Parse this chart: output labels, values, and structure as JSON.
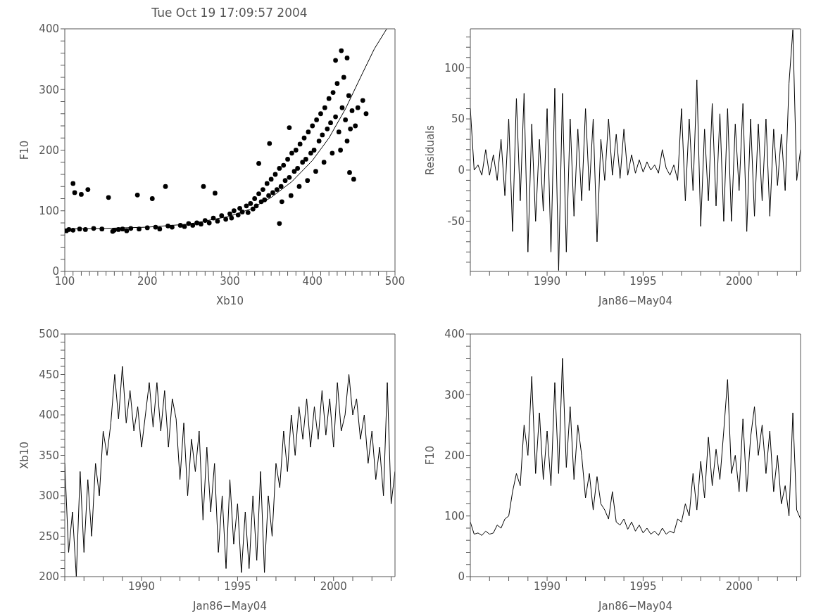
{
  "chart_data": [
    {
      "type": "scatter",
      "title": "Tue Oct 19 17:09:57 2004",
      "xlabel": "Xb10",
      "ylabel": "F10",
      "xlim": [
        100,
        500
      ],
      "ylim": [
        0,
        400
      ],
      "xticks": [
        100,
        {
          "value": 110,
          "label": null
        },
        {
          "value": 120,
          "label": null
        },
        {
          "value": 130,
          "label": null
        },
        {
          "value": 140,
          "label": null
        },
        {
          "value": 150,
          "label": null
        },
        {
          "value": 160,
          "label": null
        },
        {
          "value": 170,
          "label": null
        },
        {
          "value": 180,
          "label": null
        },
        {
          "value": 190,
          "label": null
        },
        200,
        {
          "value": 210,
          "label": null
        },
        {
          "value": 220,
          "label": null
        },
        {
          "value": 230,
          "label": null
        },
        {
          "value": 240,
          "label": null
        },
        {
          "value": 250,
          "label": null
        },
        {
          "value": 260,
          "label": null
        },
        {
          "value": 270,
          "label": null
        },
        {
          "value": 280,
          "label": null
        },
        {
          "value": 290,
          "label": null
        },
        300,
        {
          "value": 310,
          "label": null
        },
        {
          "value": 320,
          "label": null
        },
        {
          "value": 330,
          "label": null
        },
        {
          "value": 340,
          "label": null
        },
        {
          "value": 350,
          "label": null
        },
        {
          "value": 360,
          "label": null
        },
        {
          "value": 370,
          "label": null
        },
        {
          "value": 380,
          "label": null
        },
        {
          "value": 390,
          "label": null
        },
        400,
        {
          "value": 410,
          "label": null
        },
        {
          "value": 420,
          "label": null
        },
        {
          "value": 430,
          "label": null
        },
        {
          "value": 440,
          "label": null
        },
        {
          "value": 450,
          "label": null
        },
        {
          "value": 460,
          "label": null
        },
        {
          "value": 470,
          "label": null
        },
        {
          "value": 480,
          "label": null
        },
        {
          "value": 490,
          "label": null
        },
        500
      ],
      "yticks": [
        0,
        {
          "value": 20,
          "label": null
        },
        {
          "value": 40,
          "label": null
        },
        {
          "value": 60,
          "label": null
        },
        {
          "value": 80,
          "label": null
        },
        100,
        {
          "value": 120,
          "label": null
        },
        {
          "value": 140,
          "label": null
        },
        {
          "value": 160,
          "label": null
        },
        {
          "value": 180,
          "label": null
        },
        200,
        {
          "value": 220,
          "label": null
        },
        {
          "value": 240,
          "label": null
        },
        {
          "value": 260,
          "label": null
        },
        {
          "value": 280,
          "label": null
        },
        300,
        {
          "value": 320,
          "label": null
        },
        {
          "value": 340,
          "label": null
        },
        {
          "value": 360,
          "label": null
        },
        {
          "value": 380,
          "label": null
        },
        400
      ],
      "series": [
        {
          "marker": "circle",
          "color": "#000000",
          "x": [
            110,
            112,
            120,
            128,
            153,
            188,
            206,
            222,
            268,
            282,
            335,
            348,
            372,
            360,
            435,
            442,
            428,
            450,
            461,
            465,
            445,
            102,
            105,
            110,
            118,
            125,
            135,
            145,
            158,
            160,
            165,
            170,
            175,
            180,
            190,
            200,
            210,
            215,
            225,
            230,
            240,
            245,
            250,
            255,
            260,
            265,
            270,
            275,
            280,
            285,
            290,
            295,
            300,
            302,
            305,
            310,
            312,
            315,
            320,
            322,
            325,
            328,
            330,
            332,
            335,
            338,
            340,
            342,
            345,
            347,
            350,
            352,
            355,
            357,
            360,
            362,
            363,
            365,
            367,
            370,
            372,
            374,
            375,
            378,
            380,
            382,
            384,
            385,
            388,
            390,
            392,
            394,
            395,
            398,
            400,
            402,
            404,
            405,
            408,
            410,
            412,
            414,
            415,
            418,
            420,
            422,
            424,
            425,
            428,
            430,
            432,
            434,
            436,
            438,
            440,
            442,
            444,
            446,
            448,
            452,
            455
          ],
          "values": [
            145,
            130,
            127,
            135,
            122,
            126,
            120,
            140,
            140,
            129,
            178,
            211,
            237,
            79,
            364,
            352,
            348,
            152,
            282,
            260,
            163,
            67,
            69,
            68,
            70,
            69,
            71,
            70,
            66,
            68,
            69,
            70,
            67,
            71,
            70,
            72,
            73,
            70,
            75,
            73,
            76,
            74,
            79,
            76,
            80,
            78,
            84,
            80,
            88,
            83,
            92,
            86,
            95,
            88,
            100,
            93,
            104,
            98,
            108,
            97,
            112,
            103,
            120,
            108,
            128,
            115,
            135,
            118,
            145,
            125,
            152,
            130,
            160,
            135,
            170,
            140,
            115,
            175,
            150,
            185,
            155,
            125,
            195,
            165,
            200,
            170,
            140,
            210,
            180,
            220,
            185,
            150,
            230,
            195,
            240,
            200,
            165,
            250,
            215,
            260,
            225,
            180,
            270,
            235,
            285,
            245,
            195,
            295,
            255,
            310,
            230,
            200,
            270,
            320,
            250,
            215,
            290,
            235,
            265,
            240,
            270
          ]
        },
        {
          "type": "line",
          "marker": "none",
          "color": "#000000",
          "x": [
            100,
            150,
            200,
            250,
            300,
            325,
            350,
            375,
            400,
            420,
            440,
            460,
            475,
            490
          ],
          "values": [
            70,
            71,
            73,
            78,
            91,
            103,
            122,
            148,
            183,
            220,
            268,
            325,
            367,
            400
          ]
        }
      ]
    },
    {
      "type": "line",
      "xlabel": "Jan86−May04",
      "ylabel": "Residuals",
      "xlim": [
        1986,
        2003.2
      ],
      "ylim": [
        -99,
        138
      ],
      "xticks": [
        {
          "value": 1986,
          "label": null
        },
        {
          "value": 1987,
          "label": null
        },
        {
          "value": 1988,
          "label": null
        },
        {
          "value": 1989,
          "label": null
        },
        1990,
        {
          "value": 1991,
          "label": null
        },
        {
          "value": 1992,
          "label": null
        },
        {
          "value": 1993,
          "label": null
        },
        {
          "value": 1994,
          "label": null
        },
        1995,
        {
          "value": 1996,
          "label": null
        },
        {
          "value": 1997,
          "label": null
        },
        {
          "value": 1998,
          "label": null
        },
        {
          "value": 1999,
          "label": null
        },
        2000,
        {
          "value": 2001,
          "label": null
        },
        {
          "value": 2002,
          "label": null
        },
        {
          "value": 2003,
          "label": null
        }
      ],
      "yticks": [
        {
          "value": -90,
          "label": null
        },
        {
          "value": -80,
          "label": null
        },
        {
          "value": -70,
          "label": null
        },
        {
          "value": -60,
          "label": null
        },
        -50,
        {
          "value": -40,
          "label": null
        },
        {
          "value": -30,
          "label": null
        },
        {
          "value": -20,
          "label": null
        },
        {
          "value": -10,
          "label": null
        },
        0,
        {
          "value": 10,
          "label": null
        },
        {
          "value": 20,
          "label": null
        },
        {
          "value": 30,
          "label": null
        },
        {
          "value": 40,
          "label": null
        },
        50,
        {
          "value": 60,
          "label": null
        },
        {
          "value": 70,
          "label": null
        },
        {
          "value": 80,
          "label": null
        },
        {
          "value": 90,
          "label": null
        },
        100,
        {
          "value": 110,
          "label": null
        },
        {
          "value": 120,
          "label": null
        },
        {
          "value": 130,
          "label": null
        }
      ],
      "x": [
        1986.0,
        1986.2,
        1986.4,
        1986.6,
        1986.8,
        1987.0,
        1987.2,
        1987.4,
        1987.6,
        1987.8,
        1988.0,
        1988.2,
        1988.4,
        1988.6,
        1988.8,
        1989.0,
        1989.2,
        1989.4,
        1989.6,
        1989.8,
        1990.0,
        1990.2,
        1990.4,
        1990.6,
        1990.8,
        1991.0,
        1991.2,
        1991.4,
        1991.6,
        1991.8,
        1992.0,
        1992.2,
        1992.4,
        1992.6,
        1992.8,
        1993.0,
        1993.2,
        1993.4,
        1993.6,
        1993.8,
        1994.0,
        1994.2,
        1994.4,
        1994.6,
        1994.8,
        1995.0,
        1995.2,
        1995.4,
        1995.6,
        1995.8,
        1996.0,
        1996.2,
        1996.4,
        1996.6,
        1996.8,
        1997.0,
        1997.2,
        1997.4,
        1997.6,
        1997.8,
        1998.0,
        1998.2,
        1998.4,
        1998.6,
        1998.8,
        1999.0,
        1999.2,
        1999.4,
        1999.6,
        1999.8,
        2000.0,
        2000.2,
        2000.4,
        2000.6,
        2000.8,
        2001.0,
        2001.2,
        2001.4,
        2001.6,
        2001.8,
        2002.0,
        2002.2,
        2002.4,
        2002.6,
        2002.8,
        2003.0,
        2003.2
      ],
      "series": [
        {
          "color": "#000000",
          "values": [
            60,
            0,
            5,
            -5,
            20,
            -5,
            15,
            -10,
            30,
            -25,
            50,
            -60,
            70,
            -30,
            75,
            -80,
            45,
            -50,
            30,
            -40,
            60,
            -80,
            80,
            -98,
            75,
            -80,
            50,
            -45,
            40,
            -30,
            60,
            -20,
            50,
            -70,
            30,
            -10,
            50,
            -5,
            35,
            -8,
            40,
            -5,
            15,
            -3,
            10,
            -2,
            8,
            0,
            5,
            -3,
            20,
            2,
            -5,
            5,
            -10,
            60,
            -30,
            50,
            -20,
            88,
            -55,
            40,
            -30,
            65,
            -35,
            55,
            -50,
            60,
            -50,
            45,
            -20,
            65,
            -60,
            50,
            -45,
            45,
            -30,
            50,
            -45,
            40,
            -15,
            35,
            -20,
            85,
            137,
            -10,
            20
          ]
        }
      ]
    },
    {
      "type": "line",
      "xlabel": "Jan86−May04",
      "ylabel": "Xb10",
      "xlim": [
        1986,
        2003.2
      ],
      "ylim": [
        200,
        500
      ],
      "xticks": [
        {
          "value": 1986,
          "label": null
        },
        {
          "value": 1987,
          "label": null
        },
        {
          "value": 1988,
          "label": null
        },
        {
          "value": 1989,
          "label": null
        },
        1990,
        {
          "value": 1991,
          "label": null
        },
        {
          "value": 1992,
          "label": null
        },
        {
          "value": 1993,
          "label": null
        },
        {
          "value": 1994,
          "label": null
        },
        1995,
        {
          "value": 1996,
          "label": null
        },
        {
          "value": 1997,
          "label": null
        },
        {
          "value": 1998,
          "label": null
        },
        {
          "value": 1999,
          "label": null
        },
        2000,
        {
          "value": 2001,
          "label": null
        },
        {
          "value": 2002,
          "label": null
        },
        {
          "value": 2003,
          "label": null
        }
      ],
      "yticks": [
        200,
        {
          "value": 210,
          "label": null
        },
        {
          "value": 220,
          "label": null
        },
        {
          "value": 230,
          "label": null
        },
        {
          "value": 240,
          "label": null
        },
        250,
        {
          "value": 260,
          "label": null
        },
        {
          "value": 270,
          "label": null
        },
        {
          "value": 280,
          "label": null
        },
        {
          "value": 290,
          "label": null
        },
        300,
        {
          "value": 310,
          "label": null
        },
        {
          "value": 320,
          "label": null
        },
        {
          "value": 330,
          "label": null
        },
        {
          "value": 340,
          "label": null
        },
        350,
        {
          "value": 360,
          "label": null
        },
        {
          "value": 370,
          "label": null
        },
        {
          "value": 380,
          "label": null
        },
        {
          "value": 390,
          "label": null
        },
        400,
        {
          "value": 410,
          "label": null
        },
        {
          "value": 420,
          "label": null
        },
        {
          "value": 430,
          "label": null
        },
        {
          "value": 440,
          "label": null
        },
        450,
        {
          "value": 460,
          "label": null
        },
        {
          "value": 470,
          "label": null
        },
        {
          "value": 480,
          "label": null
        },
        {
          "value": 490,
          "label": null
        },
        500
      ],
      "x": [
        1986.0,
        1986.2,
        1986.4,
        1986.6,
        1986.8,
        1987.0,
        1987.2,
        1987.4,
        1987.6,
        1987.8,
        1988.0,
        1988.2,
        1988.4,
        1988.6,
        1988.8,
        1989.0,
        1989.2,
        1989.4,
        1989.6,
        1989.8,
        1990.0,
        1990.2,
        1990.4,
        1990.6,
        1990.8,
        1991.0,
        1991.2,
        1991.4,
        1991.6,
        1991.8,
        1992.0,
        1992.2,
        1992.4,
        1992.6,
        1992.8,
        1993.0,
        1993.2,
        1993.4,
        1993.6,
        1993.8,
        1994.0,
        1994.2,
        1994.4,
        1994.6,
        1994.8,
        1995.0,
        1995.2,
        1995.4,
        1995.6,
        1995.8,
        1996.0,
        1996.2,
        1996.4,
        1996.6,
        1996.8,
        1997.0,
        1997.2,
        1997.4,
        1997.6,
        1997.8,
        1998.0,
        1998.2,
        1998.4,
        1998.6,
        1998.8,
        1999.0,
        1999.2,
        1999.4,
        1999.6,
        1999.8,
        2000.0,
        2000.2,
        2000.4,
        2000.6,
        2000.8,
        2001.0,
        2001.2,
        2001.4,
        2001.6,
        2001.8,
        2002.0,
        2002.2,
        2002.4,
        2002.6,
        2002.8,
        2003.0,
        2003.2
      ],
      "series": [
        {
          "color": "#000000",
          "values": [
            340,
            230,
            280,
            200,
            330,
            230,
            320,
            250,
            340,
            300,
            380,
            350,
            390,
            450,
            395,
            460,
            390,
            430,
            380,
            410,
            360,
            400,
            440,
            385,
            440,
            380,
            430,
            360,
            420,
            395,
            320,
            390,
            300,
            370,
            330,
            380,
            270,
            360,
            280,
            340,
            230,
            300,
            210,
            320,
            240,
            290,
            205,
            280,
            210,
            300,
            220,
            330,
            205,
            300,
            250,
            340,
            310,
            380,
            330,
            400,
            350,
            410,
            370,
            420,
            360,
            410,
            370,
            430,
            375,
            420,
            360,
            440,
            380,
            400,
            450,
            400,
            420,
            370,
            400,
            340,
            380,
            320,
            360,
            300,
            440,
            290,
            330
          ]
        }
      ]
    },
    {
      "type": "line",
      "xlabel": "Jan86−May04",
      "ylabel": "F10",
      "xlim": [
        1986,
        2003.2
      ],
      "ylim": [
        0,
        400
      ],
      "xticks": [
        {
          "value": 1986,
          "label": null
        },
        {
          "value": 1987,
          "label": null
        },
        {
          "value": 1988,
          "label": null
        },
        {
          "value": 1989,
          "label": null
        },
        1990,
        {
          "value": 1991,
          "label": null
        },
        {
          "value": 1992,
          "label": null
        },
        {
          "value": 1993,
          "label": null
        },
        {
          "value": 1994,
          "label": null
        },
        1995,
        {
          "value": 1996,
          "label": null
        },
        {
          "value": 1997,
          "label": null
        },
        {
          "value": 1998,
          "label": null
        },
        {
          "value": 1999,
          "label": null
        },
        2000,
        {
          "value": 2001,
          "label": null
        },
        {
          "value": 2002,
          "label": null
        },
        {
          "value": 2003,
          "label": null
        }
      ],
      "yticks": [
        0,
        {
          "value": 20,
          "label": null
        },
        {
          "value": 40,
          "label": null
        },
        {
          "value": 60,
          "label": null
        },
        {
          "value": 80,
          "label": null
        },
        100,
        {
          "value": 120,
          "label": null
        },
        {
          "value": 140,
          "label": null
        },
        {
          "value": 160,
          "label": null
        },
        {
          "value": 180,
          "label": null
        },
        200,
        {
          "value": 220,
          "label": null
        },
        {
          "value": 240,
          "label": null
        },
        {
          "value": 260,
          "label": null
        },
        {
          "value": 280,
          "label": null
        },
        300,
        {
          "value": 320,
          "label": null
        },
        {
          "value": 340,
          "label": null
        },
        {
          "value": 360,
          "label": null
        },
        {
          "value": 380,
          "label": null
        },
        400
      ],
      "x": [
        1986.0,
        1986.2,
        1986.4,
        1986.6,
        1986.8,
        1987.0,
        1987.2,
        1987.4,
        1987.6,
        1987.8,
        1988.0,
        1988.2,
        1988.4,
        1988.6,
        1988.8,
        1989.0,
        1989.2,
        1989.4,
        1989.6,
        1989.8,
        1990.0,
        1990.2,
        1990.4,
        1990.6,
        1990.8,
        1991.0,
        1991.2,
        1991.4,
        1991.6,
        1991.8,
        1992.0,
        1992.2,
        1992.4,
        1992.6,
        1992.8,
        1993.0,
        1993.2,
        1993.4,
        1993.6,
        1993.8,
        1994.0,
        1994.2,
        1994.4,
        1994.6,
        1994.8,
        1995.0,
        1995.2,
        1995.4,
        1995.6,
        1995.8,
        1996.0,
        1996.2,
        1996.4,
        1996.6,
        1996.8,
        1997.0,
        1997.2,
        1997.4,
        1997.6,
        1997.8,
        1998.0,
        1998.2,
        1998.4,
        1998.6,
        1998.8,
        1999.0,
        1999.2,
        1999.4,
        1999.6,
        1999.8,
        2000.0,
        2000.2,
        2000.4,
        2000.6,
        2000.8,
        2001.0,
        2001.2,
        2001.4,
        2001.6,
        2001.8,
        2002.0,
        2002.2,
        2002.4,
        2002.6,
        2002.8,
        2003.0,
        2003.2
      ],
      "series": [
        {
          "color": "#000000",
          "values": [
            90,
            70,
            72,
            68,
            75,
            70,
            72,
            85,
            80,
            95,
            100,
            140,
            170,
            150,
            250,
            200,
            330,
            170,
            270,
            160,
            240,
            150,
            320,
            170,
            360,
            180,
            280,
            160,
            250,
            200,
            130,
            170,
            110,
            165,
            120,
            110,
            95,
            140,
            90,
            85,
            95,
            78,
            90,
            75,
            85,
            72,
            80,
            70,
            75,
            68,
            80,
            70,
            75,
            72,
            95,
            90,
            120,
            100,
            170,
            110,
            190,
            130,
            230,
            150,
            210,
            160,
            240,
            325,
            170,
            200,
            140,
            260,
            140,
            230,
            280,
            200,
            250,
            170,
            240,
            140,
            200,
            120,
            150,
            100,
            270,
            110,
            95
          ]
        }
      ]
    }
  ]
}
